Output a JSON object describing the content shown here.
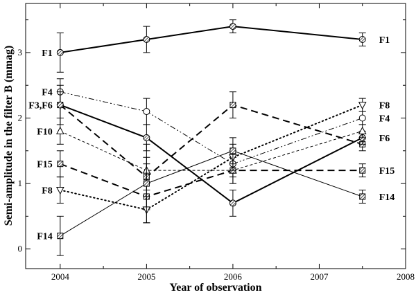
{
  "chart_data": {
    "type": "line",
    "title": "",
    "xlabel": "Year of observation",
    "ylabel": "Semi-amplitude in the filter B (mmag)",
    "xlim": [
      2003.6,
      2008
    ],
    "ylim": [
      -0.3,
      3.75
    ],
    "xticks": [
      2004,
      2005,
      2006,
      2007,
      2008
    ],
    "yticks": [
      0,
      1,
      2,
      3
    ],
    "xtick_labels": [
      "2004",
      "2005",
      "2006",
      "2007",
      "2008"
    ],
    "ytick_labels": [
      "0",
      "1",
      "2",
      "3"
    ],
    "grid": false,
    "series": [
      {
        "name": "F1",
        "style": "solid",
        "width": 2,
        "marker": "hatched-circle",
        "x": [
          2004,
          2005,
          2006,
          2007.5
        ],
        "y": [
          3.0,
          3.2,
          3.4,
          3.2
        ],
        "err": [
          0.3,
          0.2,
          0.1,
          0.1
        ],
        "label_left": "F1",
        "label_right": "F1"
      },
      {
        "name": "F4",
        "style": "dashdotdot",
        "width": 1,
        "marker": "open-circle",
        "x": [
          2004,
          2005,
          2006,
          2007.5
        ],
        "y": [
          2.4,
          2.1,
          1.3,
          2.0
        ],
        "err": [
          0.2,
          0.2,
          0.2,
          0.1
        ],
        "label_left": "F4",
        "label_right": "F4"
      },
      {
        "name": "F3",
        "style": "dashed",
        "width": 2,
        "marker": "hatched-square",
        "x": [
          2004,
          2005,
          2006,
          2007.5
        ],
        "y": [
          2.2,
          1.1,
          2.2,
          1.6
        ],
        "err": [
          0.3,
          0.2,
          0.2,
          0.1
        ],
        "label_left": "F3,F6",
        "label_right": ""
      },
      {
        "name": "F6",
        "style": "solid",
        "width": 2,
        "marker": "hatched-circle",
        "x": [
          2004,
          2005,
          2006,
          2007.5
        ],
        "y": [
          2.2,
          1.7,
          0.7,
          1.7
        ],
        "err": [
          0.2,
          0.2,
          0.2,
          0.1
        ],
        "label_left": "",
        "label_right": "F6"
      },
      {
        "name": "F10",
        "style": "dashed-thin",
        "width": 1,
        "marker": "triangle-up",
        "x": [
          2004,
          2005,
          2006,
          2007.5
        ],
        "y": [
          1.8,
          1.2,
          1.2,
          1.8
        ],
        "err": [
          0.2,
          0.2,
          0.2,
          0.1
        ],
        "label_left": "F10",
        "label_right": ""
      },
      {
        "name": "F15",
        "style": "dashed",
        "width": 2,
        "marker": "hatched-square",
        "x": [
          2004,
          2005,
          2006,
          2007.5
        ],
        "y": [
          1.3,
          0.8,
          1.2,
          1.2
        ],
        "err": [
          0.2,
          0.2,
          0.2,
          0.1
        ],
        "label_left": "F15",
        "label_right": "F15"
      },
      {
        "name": "F8",
        "style": "dotted",
        "width": 2,
        "marker": "triangle-down",
        "x": [
          2004,
          2005,
          2006,
          2007.5
        ],
        "y": [
          0.9,
          0.6,
          1.4,
          2.2
        ],
        "err": [
          0.2,
          0.2,
          0.2,
          0.1
        ],
        "label_left": "F8",
        "label_right": "F8"
      },
      {
        "name": "F14",
        "style": "solid",
        "width": 1,
        "marker": "hatched-square",
        "x": [
          2004,
          2005,
          2006,
          2007.5
        ],
        "y": [
          0.2,
          1.0,
          1.5,
          0.8
        ],
        "err": [
          0.3,
          0.6,
          0.2,
          0.1
        ],
        "label_left": "F14",
        "label_right": "F14"
      }
    ]
  }
}
